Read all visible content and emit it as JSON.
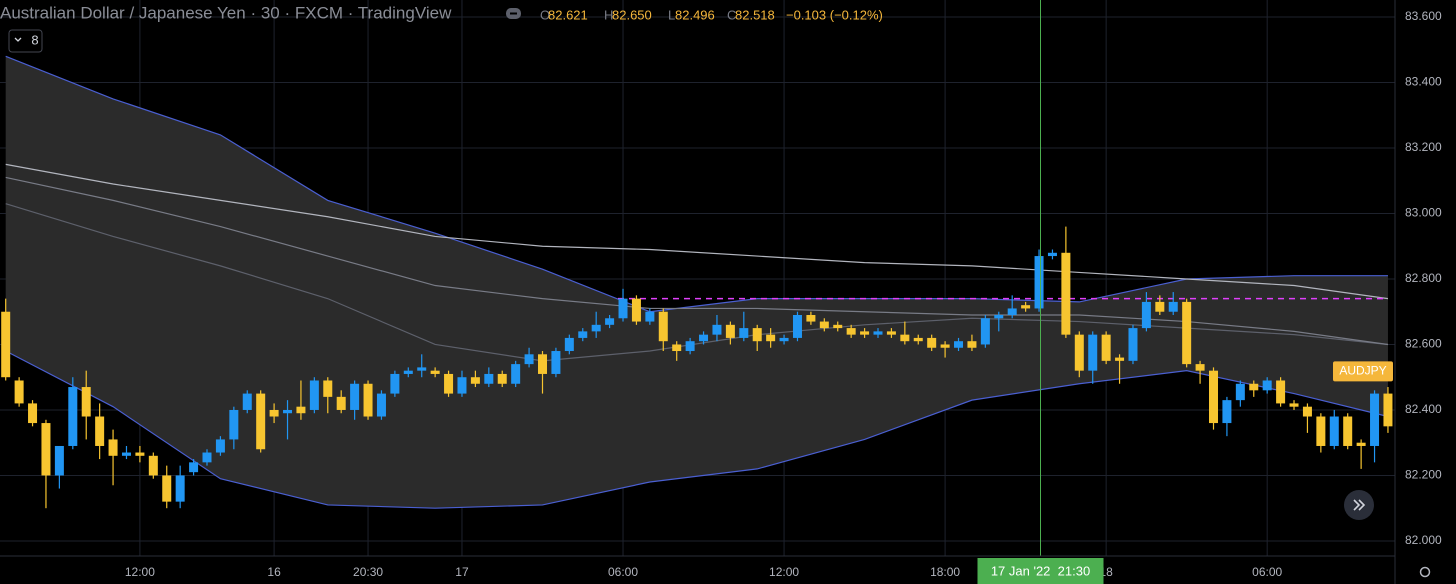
{
  "chart_data": {
    "type": "candlestick",
    "title": "Australian Dollar / Japanese Yen · 30 · FXCM · TradingView",
    "interval_badge": "8",
    "ohlc": [
      {
        "key": "O",
        "value": 82.621,
        "label": "82.621"
      },
      {
        "key": "H",
        "value": 82.65,
        "label": "82.650"
      },
      {
        "key": "L",
        "value": 82.496,
        "label": "82.496"
      },
      {
        "key": "C",
        "value": 82.518,
        "label": "82.518"
      }
    ],
    "change_label": "−0.103 (−0.12%)",
    "symbol_label": "AUDJPY",
    "crosshair_label": "17 Jan '22  21:30",
    "up_color": "#2196f3",
    "down_color": "#f7c530",
    "categories": [
      null,
      null,
      null,
      null,
      null,
      null,
      null,
      null,
      null,
      null,
      "12:00",
      null,
      null,
      null,
      null,
      null,
      null,
      null,
      null,
      null,
      "16",
      null,
      null,
      null,
      null,
      null,
      null,
      "20:30",
      null,
      null,
      null,
      null,
      null,
      null,
      "17",
      null,
      null,
      null,
      null,
      null,
      null,
      null,
      null,
      null,
      null,
      null,
      "06:00",
      null,
      null,
      null,
      null,
      null,
      null,
      null,
      null,
      null,
      null,
      null,
      "12:00",
      null,
      null,
      null,
      null,
      null,
      null,
      null,
      null,
      null,
      null,
      null,
      "18:00",
      null,
      null,
      null,
      null,
      null,
      null,
      null,
      null,
      null,
      null,
      null,
      "18",
      null,
      null,
      null,
      null,
      null,
      null,
      null,
      null,
      null,
      null,
      null,
      "06:00",
      null,
      null,
      null,
      null,
      null,
      null,
      null,
      null,
      null
    ],
    "open": [
      82.7,
      82.49,
      82.42,
      82.36,
      82.2,
      82.29,
      82.47,
      82.38,
      82.31,
      82.26,
      82.27,
      82.26,
      82.2,
      82.12,
      82.21,
      82.24,
      82.27,
      82.31,
      82.4,
      82.45,
      82.4,
      82.39,
      82.41,
      82.4,
      82.49,
      82.44,
      82.4,
      82.48,
      82.38,
      82.45,
      82.51,
      82.52,
      82.52,
      82.51,
      82.45,
      82.5,
      82.48,
      82.51,
      82.48,
      82.54,
      82.57,
      82.51,
      82.58,
      82.62,
      82.64,
      82.66,
      82.68,
      82.74,
      82.67,
      82.7,
      82.6,
      82.58,
      82.61,
      82.63,
      82.66,
      82.62,
      82.65,
      82.63,
      82.61,
      82.62,
      82.69,
      82.67,
      82.66,
      82.65,
      82.64,
      82.63,
      82.64,
      82.63,
      82.62,
      82.62,
      82.6,
      82.59,
      82.61,
      82.6,
      82.68,
      82.69,
      82.72,
      82.71,
      82.87,
      82.88,
      82.63,
      82.52,
      82.63,
      82.56,
      82.55,
      82.65,
      82.73,
      82.7,
      82.73,
      82.54,
      82.52,
      82.36,
      82.43,
      82.48,
      82.46,
      82.49,
      82.42,
      82.41,
      82.38,
      82.29,
      82.38,
      82.3,
      82.29,
      82.45
    ],
    "high": [
      82.74,
      82.5,
      82.43,
      82.37,
      82.29,
      82.5,
      82.52,
      82.42,
      82.34,
      82.29,
      82.29,
      82.27,
      82.23,
      82.23,
      82.25,
      82.28,
      82.32,
      82.41,
      82.46,
      82.46,
      82.42,
      82.43,
      82.49,
      82.5,
      82.5,
      82.46,
      82.49,
      82.49,
      82.46,
      82.52,
      82.53,
      82.57,
      82.53,
      82.52,
      82.52,
      82.52,
      82.53,
      82.52,
      82.55,
      82.59,
      82.58,
      82.59,
      82.63,
      82.65,
      82.7,
      82.69,
      82.77,
      82.75,
      82.71,
      82.71,
      82.61,
      82.62,
      82.64,
      82.69,
      82.67,
      82.7,
      82.66,
      82.65,
      82.63,
      82.7,
      82.7,
      82.68,
      82.67,
      82.66,
      82.65,
      82.65,
      82.65,
      82.67,
      82.63,
      82.63,
      82.61,
      82.62,
      82.63,
      82.69,
      82.7,
      82.75,
      82.73,
      82.89,
      82.89,
      82.96,
      82.64,
      82.64,
      82.64,
      82.57,
      82.66,
      82.76,
      82.75,
      82.76,
      82.74,
      82.55,
      82.53,
      82.44,
      82.49,
      82.49,
      82.5,
      82.5,
      82.43,
      82.42,
      82.39,
      82.4,
      82.39,
      82.31,
      82.46,
      82.47
    ],
    "low": [
      82.49,
      82.41,
      82.35,
      82.1,
      82.16,
      82.28,
      82.31,
      82.25,
      82.17,
      82.25,
      82.24,
      82.19,
      82.1,
      82.1,
      82.2,
      82.23,
      82.26,
      82.28,
      82.39,
      82.27,
      82.36,
      82.31,
      82.37,
      82.39,
      82.39,
      82.39,
      82.37,
      82.37,
      82.37,
      82.44,
      82.5,
      82.5,
      82.5,
      82.44,
      82.44,
      82.47,
      82.47,
      82.47,
      82.47,
      82.53,
      82.45,
      82.5,
      82.57,
      82.61,
      82.62,
      82.65,
      82.67,
      82.66,
      82.66,
      82.58,
      82.55,
      82.57,
      82.6,
      82.61,
      82.6,
      82.61,
      82.58,
      82.59,
      82.6,
      82.61,
      82.66,
      82.64,
      82.64,
      82.62,
      82.62,
      82.62,
      82.62,
      82.6,
      82.6,
      82.58,
      82.56,
      82.58,
      82.58,
      82.59,
      82.64,
      82.68,
      82.7,
      82.7,
      82.86,
      82.62,
      82.5,
      82.48,
      82.54,
      82.48,
      82.54,
      82.64,
      82.69,
      82.69,
      82.53,
      82.48,
      82.34,
      82.32,
      82.41,
      82.44,
      82.45,
      82.41,
      82.4,
      82.33,
      82.27,
      82.28,
      82.28,
      82.22,
      82.24,
      82.33
    ],
    "close": [
      82.5,
      82.42,
      82.36,
      82.2,
      82.29,
      82.47,
      82.38,
      82.29,
      82.26,
      82.27,
      82.26,
      82.2,
      82.12,
      82.2,
      82.24,
      82.27,
      82.31,
      82.4,
      82.45,
      82.28,
      82.38,
      82.4,
      82.39,
      82.49,
      82.44,
      82.4,
      82.48,
      82.38,
      82.45,
      82.51,
      82.52,
      82.53,
      82.51,
      82.45,
      82.5,
      82.48,
      82.51,
      82.48,
      82.54,
      82.57,
      82.51,
      82.58,
      82.62,
      82.64,
      82.66,
      82.68,
      82.74,
      82.67,
      82.7,
      82.61,
      82.58,
      82.61,
      82.63,
      82.66,
      82.62,
      82.65,
      82.61,
      82.61,
      82.62,
      82.69,
      82.67,
      82.65,
      82.65,
      82.63,
      82.63,
      82.64,
      82.63,
      82.61,
      82.61,
      82.59,
      82.59,
      82.61,
      82.59,
      82.68,
      82.69,
      82.71,
      82.71,
      82.87,
      82.88,
      82.63,
      82.52,
      82.63,
      82.55,
      82.55,
      82.65,
      82.73,
      82.7,
      82.73,
      82.54,
      82.52,
      82.36,
      82.43,
      82.48,
      82.46,
      82.49,
      82.42,
      82.41,
      82.38,
      82.29,
      82.38,
      82.29,
      82.29,
      82.45,
      82.35
    ],
    "overlay_x": [
      0,
      8,
      16,
      24,
      32,
      40,
      48,
      56,
      64,
      72,
      80,
      88,
      96,
      103
    ],
    "band": {
      "fill": "#2b2b2b",
      "upper": {
        "color": "#4a5fd1",
        "values": [
          83.48,
          83.35,
          83.24,
          83.04,
          82.94,
          82.83,
          82.7,
          82.74,
          82.74,
          82.74,
          82.73,
          82.8,
          82.81,
          82.81
        ]
      },
      "lower": {
        "color": "#4a5fd1",
        "values": [
          82.58,
          82.41,
          82.19,
          82.11,
          82.1,
          82.11,
          82.18,
          82.22,
          82.31,
          82.43,
          82.48,
          82.52,
          82.45,
          82.38
        ]
      }
    },
    "lines": [
      {
        "color": "#5d606b",
        "values": [
          83.03,
          82.93,
          82.84,
          82.74,
          82.6,
          82.55,
          82.58,
          82.63,
          82.66,
          82.68,
          82.67,
          82.65,
          82.63,
          82.6
        ]
      },
      {
        "color": "#b2b5be",
        "values": [
          83.15,
          83.09,
          83.04,
          82.99,
          82.93,
          82.9,
          82.89,
          82.87,
          82.85,
          82.84,
          82.82,
          82.8,
          82.78,
          82.74
        ]
      },
      {
        "color": "#787b86",
        "values": [
          83.11,
          83.04,
          82.96,
          82.87,
          82.78,
          82.74,
          82.71,
          82.71,
          82.7,
          82.69,
          82.69,
          82.67,
          82.64,
          82.6
        ]
      }
    ],
    "hline": {
      "value": 82.74,
      "color": "#e040fb"
    },
    "ylim": [
      81.954,
      83.652
    ],
    "yticks": [
      {
        "value": 82.0,
        "label": "82.000"
      },
      {
        "value": 82.2,
        "label": "82.200"
      },
      {
        "value": 82.4,
        "label": "82.400"
      },
      {
        "value": 82.6,
        "label": "82.600"
      },
      {
        "value": 82.8,
        "label": "82.800"
      },
      {
        "value": 83.0,
        "label": "83.000"
      },
      {
        "value": 83.2,
        "label": "83.200"
      },
      {
        "value": 83.4,
        "label": "83.400"
      },
      {
        "value": 83.6,
        "label": "83.600"
      }
    ],
    "grid": true
  }
}
